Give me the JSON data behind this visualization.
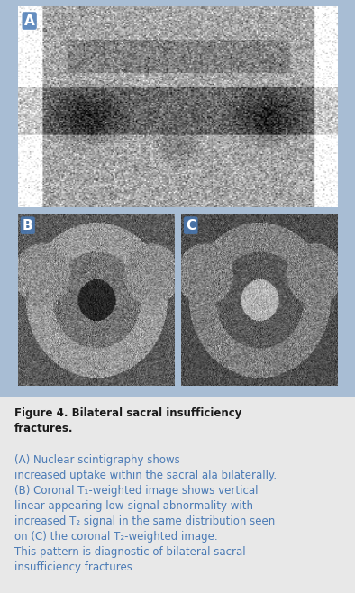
{
  "title": "Figure 4. Bilateral sacral insufficiency fractures.",
  "caption_bold_part": "Figure 4. Bilateral sacral insufficiency fractures.",
  "caption_text": " (A) Nuclear scintigraphy shows increased uptake within the sacral ala bilaterally. (B) Coronal T₁-weighted image shows vertical linear-appearing low-signal abnormality with increased T₂ signal in the same distribution seen on (C) the coronal T₂-weighted image.\nThis pattern is diagnostic of bilateral sacral insufficiency fractures.",
  "outer_bg": "#a8bdd4",
  "caption_bg": "#e8e8e8",
  "label_A": "A",
  "label_B": "B",
  "label_C": "C",
  "label_color": "#ffffff",
  "label_bg": "#4a7ab5",
  "caption_title_color": "#1a1a1a",
  "caption_body_color": "#4a7ab5",
  "fig_width": 3.94,
  "fig_height": 6.58,
  "dpi": 100
}
